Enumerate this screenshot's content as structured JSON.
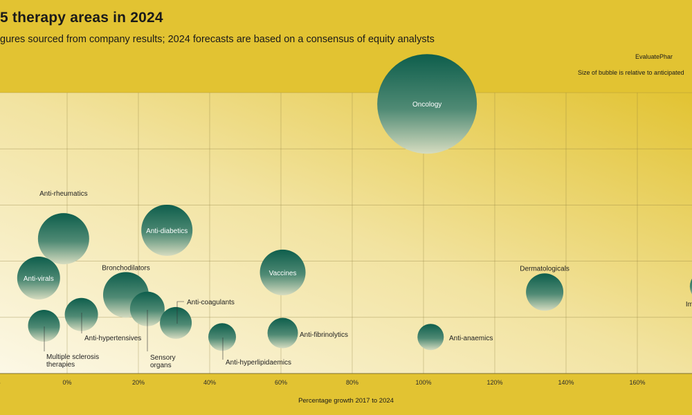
{
  "header": {
    "title": "5 therapy areas in 2024",
    "subtitle": "gures sourced from company results; 2024 forecasts are based on a consensus of equity analysts",
    "source": "EvaluatePhar",
    "size_note": "Size of bubble is relative to anticipated"
  },
  "colors": {
    "background": "#e2c332",
    "bubble_dark": "#0e5e4c",
    "bubble_light": "#d6dcc0",
    "grid": "#8a7a3a"
  },
  "chart_data": {
    "type": "scatter",
    "xlabel": "Percentage growth 2017 to 2024",
    "x_ticks": [
      "0%",
      "0%",
      "20%",
      "40%",
      "60%",
      "80%",
      "100%",
      "120%",
      "140%",
      "160%"
    ],
    "points": [
      {
        "name": "Oncology",
        "x": 101,
        "y": 4.8,
        "size": 72
      },
      {
        "name": "Anti-rheumatics",
        "x": -1,
        "y": 2.4,
        "size": 37
      },
      {
        "name": "Anti-diabetics",
        "x": 28,
        "y": 2.55,
        "size": 37
      },
      {
        "name": "Vaccines",
        "x": 60.5,
        "y": 1.8,
        "size": 33
      },
      {
        "name": "Anti-virals",
        "x": -8,
        "y": 1.7,
        "size": 31
      },
      {
        "name": "Bronchodilators",
        "x": 16.5,
        "y": 1.4,
        "size": 33
      },
      {
        "name": "Dermatologicals",
        "x": 134,
        "y": 1.45,
        "size": 27
      },
      {
        "name": "Immunosu",
        "x": 179,
        "y": 1.55,
        "size": 22
      },
      {
        "name": "Sensory organs",
        "x": 22.5,
        "y": 1.15,
        "size": 25
      },
      {
        "name": "Anti-hypertensives",
        "x": 4,
        "y": 1.05,
        "size": 24
      },
      {
        "name": "Anti-coagulants",
        "x": 30.5,
        "y": 0.9,
        "size": 23
      },
      {
        "name": "Multiple sclerosis therapies",
        "x": -6.5,
        "y": 0.85,
        "size": 23
      },
      {
        "name": "Anti-fibrinolytics",
        "x": 60.5,
        "y": 0.72,
        "size": 22
      },
      {
        "name": "Anti-hyperlipidaemics",
        "x": 43.5,
        "y": 0.65,
        "size": 20
      },
      {
        "name": "Anti-anaemics",
        "x": 102,
        "y": 0.65,
        "size": 19
      }
    ]
  }
}
